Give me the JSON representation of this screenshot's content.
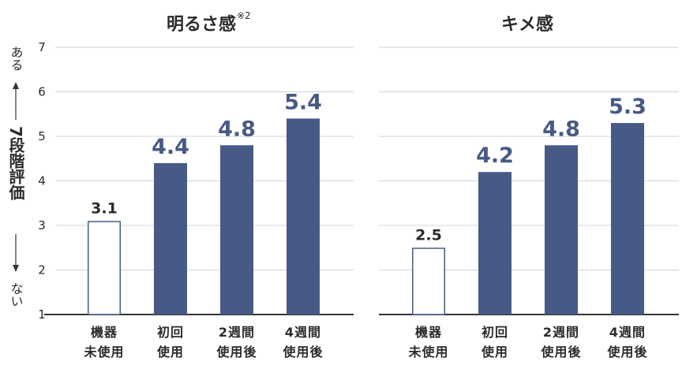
{
  "side_label": {
    "top": "ある",
    "middle": "7段階評価",
    "bottom": "ない"
  },
  "colors": {
    "bar": "#475a86",
    "bar_outline": "#475a86",
    "label_big": "#475a86"
  },
  "chart_data": [
    {
      "type": "bar",
      "title": "明るさ感",
      "title_note": "※2",
      "categories": [
        [
          "機器",
          "未使用"
        ],
        [
          "初回",
          "使用"
        ],
        [
          "2週間",
          "使用後"
        ],
        [
          "4週間",
          "使用後"
        ]
      ],
      "values": [
        3.1,
        4.4,
        4.8,
        5.4
      ],
      "value_labels": [
        "3.1",
        "4.4",
        "4.8",
        "5.4"
      ],
      "ylim": [
        1,
        7
      ],
      "yticks": [
        "1",
        "2",
        "3",
        "4",
        "5",
        "6",
        "7"
      ],
      "grid": true
    },
    {
      "type": "bar",
      "title": "キメ感",
      "categories": [
        [
          "機器",
          "未使用"
        ],
        [
          "初回",
          "使用"
        ],
        [
          "2週間",
          "使用後"
        ],
        [
          "4週間",
          "使用後"
        ]
      ],
      "values": [
        2.5,
        4.2,
        4.8,
        5.3
      ],
      "value_labels": [
        "2.5",
        "4.2",
        "4.8",
        "5.3"
      ],
      "ylim": [
        1,
        7
      ],
      "grid": true
    }
  ]
}
